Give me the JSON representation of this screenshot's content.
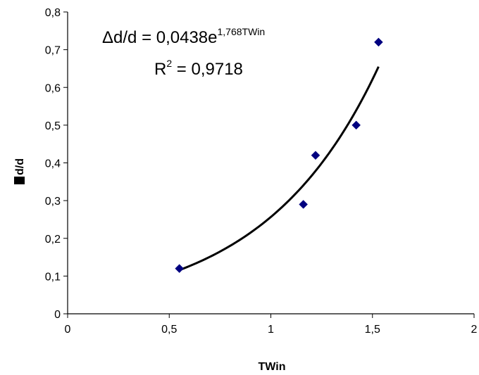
{
  "chart_data": {
    "type": "scatter",
    "title": "",
    "xlabel": "TWin",
    "ylabel": "d/d",
    "xlim": [
      0,
      2
    ],
    "ylim": [
      0,
      0.8
    ],
    "x_ticks": [
      "0",
      "0,5",
      "1",
      "1,5",
      "2"
    ],
    "x_tick_values": [
      0,
      0.5,
      1,
      1.5,
      2
    ],
    "y_ticks": [
      "0",
      "0,1",
      "0,2",
      "0,3",
      "0,4",
      "0,5",
      "0,6",
      "0,7",
      "0,8"
    ],
    "y_tick_values": [
      0,
      0.1,
      0.2,
      0.3,
      0.4,
      0.5,
      0.6,
      0.7,
      0.8
    ],
    "grid": false,
    "series": [
      {
        "marker": "diamond",
        "color": "#000080",
        "points": [
          {
            "x": 0.55,
            "y": 0.12
          },
          {
            "x": 1.16,
            "y": 0.29
          },
          {
            "x": 1.22,
            "y": 0.42
          },
          {
            "x": 1.42,
            "y": 0.5
          },
          {
            "x": 1.53,
            "y": 0.72
          }
        ]
      }
    ],
    "trendline": {
      "type": "exponential",
      "a": 0.0438,
      "b": 1.768,
      "x_range": [
        0.55,
        1.53
      ],
      "color": "#000000"
    },
    "annotations": {
      "equation_lhs": "Δd/d = 0,0438e",
      "equation_exp": "1,768TWin",
      "r2_lhs": "R",
      "r2_exp": "2",
      "r2_rhs": " = 0,9718"
    }
  }
}
